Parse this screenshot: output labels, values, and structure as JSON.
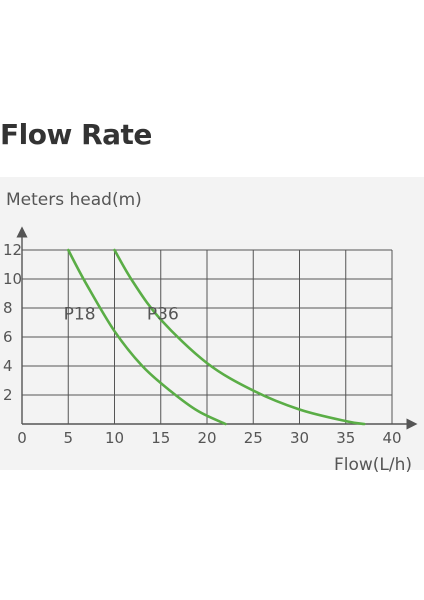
{
  "page": {
    "heading": "Flow Rate"
  },
  "chart_data": {
    "type": "line",
    "title": "",
    "ylabel": "Meters head(m)",
    "xlabel": "Flow(L/h)",
    "xlim": [
      0,
      40
    ],
    "ylim": [
      0,
      12
    ],
    "xticks": [
      0,
      5,
      10,
      15,
      20,
      25,
      30,
      35,
      40
    ],
    "yticks": [
      2,
      4,
      6,
      8,
      10,
      12
    ],
    "grid": true,
    "series": [
      {
        "name": "P18",
        "color": "#5aad46",
        "x": [
          5,
          7,
          10,
          13,
          16,
          19,
          22
        ],
        "y": [
          12,
          9.6,
          6.4,
          4.0,
          2.3,
          0.9,
          0
        ]
      },
      {
        "name": "P36",
        "color": "#5aad46",
        "x": [
          10,
          12,
          15,
          20,
          25,
          30,
          35,
          37
        ],
        "y": [
          12,
          9.8,
          7.2,
          4.2,
          2.3,
          1.0,
          0.2,
          0
        ]
      }
    ]
  }
}
